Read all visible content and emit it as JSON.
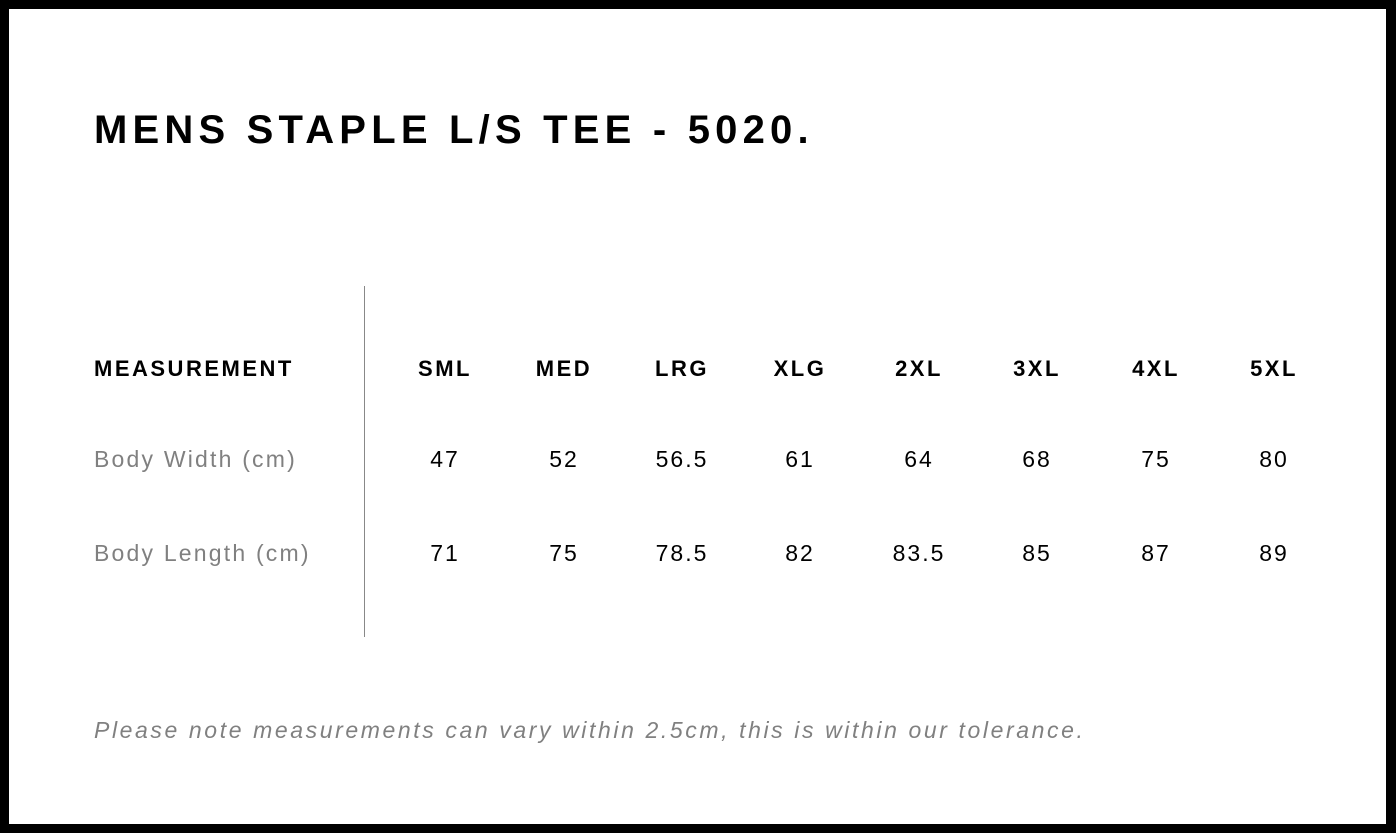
{
  "title": "MENS STAPLE L/S TEE - 5020.",
  "table": {
    "header_label": "MEASUREMENT",
    "sizes": [
      "SML",
      "MED",
      "LRG",
      "XLG",
      "2XL",
      "3XL",
      "4XL",
      "5XL"
    ],
    "rows": [
      {
        "label": "Body Width (cm)",
        "values": [
          "47",
          "52",
          "56.5",
          "61",
          "64",
          "68",
          "75",
          "80"
        ]
      },
      {
        "label": "Body Length (cm)",
        "values": [
          "71",
          "75",
          "78.5",
          "82",
          "83.5",
          "85",
          "87",
          "89"
        ]
      }
    ]
  },
  "note": "Please note measurements can vary within 2.5cm, this is within our tolerance."
}
